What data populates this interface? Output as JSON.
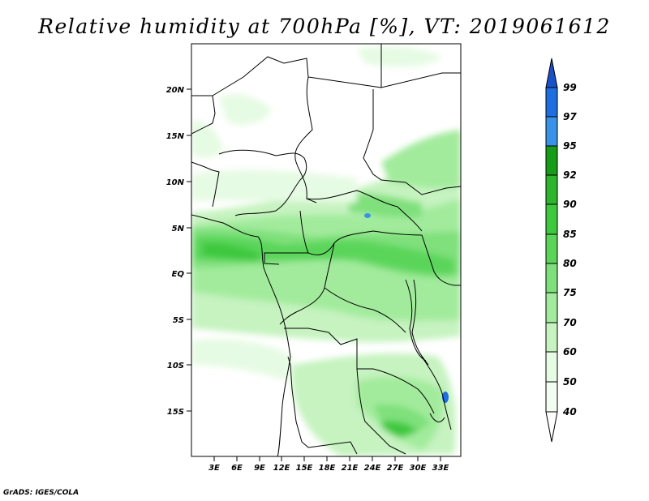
{
  "title": "Relative humidity at 700hPa [%], VT: 2019061612",
  "credit": "GrADS: IGES/COLA",
  "map": {
    "lon_range": [
      0,
      36
    ],
    "lat_range": [
      -20,
      25
    ],
    "lat_ticks": [
      {
        "label": "20N",
        "value": 20
      },
      {
        "label": "15N",
        "value": 15
      },
      {
        "label": "10N",
        "value": 10
      },
      {
        "label": "5N",
        "value": 5
      },
      {
        "label": "EQ",
        "value": 0
      },
      {
        "label": "5S",
        "value": -5
      },
      {
        "label": "10S",
        "value": -10
      },
      {
        "label": "15S",
        "value": -15
      }
    ],
    "lon_ticks": [
      {
        "label": "3E",
        "value": 3
      },
      {
        "label": "6E",
        "value": 6
      },
      {
        "label": "9E",
        "value": 9
      },
      {
        "label": "12E",
        "value": 12
      },
      {
        "label": "15E",
        "value": 15
      },
      {
        "label": "18E",
        "value": 18
      },
      {
        "label": "21E",
        "value": 21
      },
      {
        "label": "24E",
        "value": 24
      },
      {
        "label": "27E",
        "value": 27
      },
      {
        "label": "30E",
        "value": 30
      },
      {
        "label": "33E",
        "value": 33
      }
    ]
  },
  "colorbar": {
    "labels": [
      "99",
      "97",
      "95",
      "92",
      "90",
      "85",
      "80",
      "75",
      "70",
      "60",
      "50",
      "40"
    ],
    "colors": [
      "#ffffff",
      "#e6fbe3",
      "#c6f3c0",
      "#a2eb9c",
      "#7fe07b",
      "#5ad55a",
      "#3ec83e",
      "#2db52d",
      "#169c16",
      "#3a92e8",
      "#1e6ee0",
      "#1a50c8"
    ]
  }
}
